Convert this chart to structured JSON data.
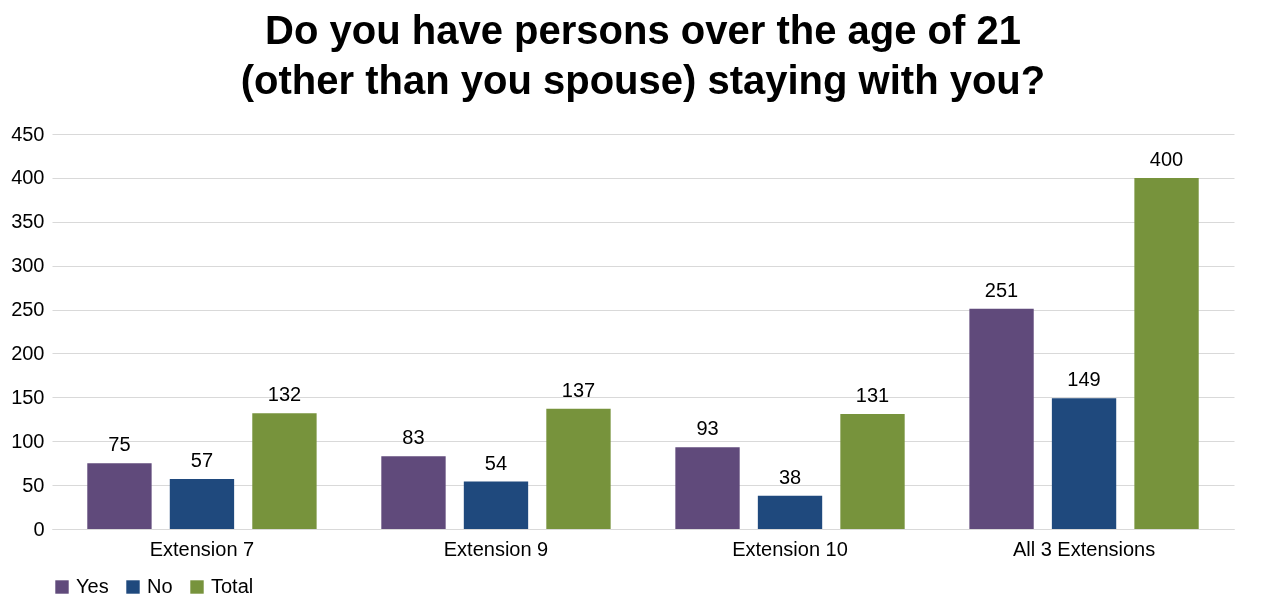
{
  "chart_data": {
    "type": "bar",
    "title": "Do you have persons over the age of 21\n(other than you spouse) staying with you?",
    "categories": [
      "Extension 7",
      "Extension 9",
      "Extension 10",
      "All 3 Extensions"
    ],
    "series": [
      {
        "name": "Yes",
        "color": "#604a7b",
        "values": [
          75,
          83,
          93,
          251
        ]
      },
      {
        "name": "No",
        "color": "#1f497d",
        "values": [
          57,
          54,
          38,
          149
        ]
      },
      {
        "name": "Total",
        "color": "#77933c",
        "values": [
          132,
          137,
          131,
          400
        ]
      }
    ],
    "ylim": [
      0,
      450
    ],
    "yticks": [
      0,
      50,
      100,
      150,
      200,
      250,
      300,
      350,
      400,
      450
    ],
    "grid": "y",
    "legend": "bottom",
    "data_labels": true
  }
}
